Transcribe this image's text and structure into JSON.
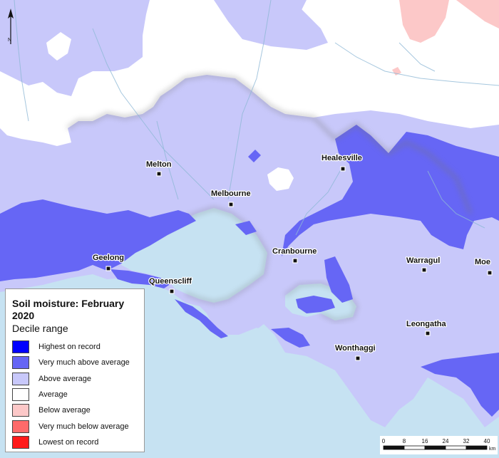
{
  "legend": {
    "title": "Soil moisture: February 2020",
    "subtitle": "Decile range",
    "items": [
      {
        "label": "Highest on record",
        "color": "#0000ff"
      },
      {
        "label": "Very much above average",
        "color": "#6666f5"
      },
      {
        "label": "Above average",
        "color": "#c8c8fa"
      },
      {
        "label": "Average",
        "color": "#ffffff"
      },
      {
        "label": "Below average",
        "color": "#fcc8c8"
      },
      {
        "label": "Very much below average",
        "color": "#fd6a6a"
      },
      {
        "label": "Lowest on record",
        "color": "#ff1a1a"
      }
    ]
  },
  "north": {
    "label": "N"
  },
  "scale": {
    "ticks": [
      "0",
      "8",
      "16",
      "24",
      "32",
      "40"
    ],
    "unit": "km"
  },
  "towns": [
    {
      "name": "Melton"
    },
    {
      "name": "Healesville"
    },
    {
      "name": "Melbourne"
    },
    {
      "name": "Geelong"
    },
    {
      "name": "Cranbourne"
    },
    {
      "name": "Warragul"
    },
    {
      "name": "Moe"
    },
    {
      "name": "Queenscliff"
    },
    {
      "name": "Leongatha"
    },
    {
      "name": "Wonthaggi"
    }
  ],
  "colors": {
    "sea": "#c6e2f2",
    "border": "#888888"
  }
}
